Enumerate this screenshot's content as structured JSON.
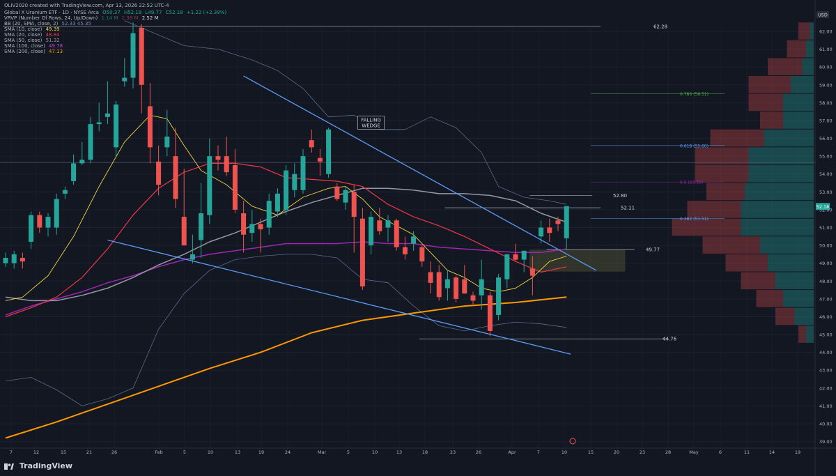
{
  "header": {
    "created_line": "OLIV2020 created with TradingView.com, Apr 13, 2026 22:52 UTC-4",
    "symbol_line": "Global X Uranium ETF · 1D · NYSE Arca",
    "ohlc": {
      "o": "O50.37",
      "h": "H52.18",
      "l": "L49.77",
      "c": "C52.18",
      "chg": "+1.22 (+2.39%)"
    },
    "vrvp_label": "VRVP (Number Of Rows, 24, Up/Down)",
    "vrvp_vals": [
      "1.14 M",
      "1.38 M",
      "2.52 M"
    ],
    "bb_label": "BB (20, SMA, close, 2)",
    "bb_vals": "52.33  45.35",
    "sma10_label": "SMA (10, close)",
    "sma10_val": "49.39",
    "sma20_label": "SMA (20, close)",
    "sma20_val": "48.84",
    "sma50_label": "SMA (50, close)",
    "sma50_val": "51.32",
    "sma100_label": "SMA (100, close)",
    "sma100_val": "49.78",
    "sma200_label": "SMA (200, close)",
    "sma200_val": "47.13"
  },
  "currency": "USD",
  "footer_brand": "TradingView",
  "colors": {
    "bg": "#131722",
    "up": "#26a69a",
    "down": "#ef5350",
    "sma10": "#f2d541",
    "sma20": "#f23645",
    "sma50": "#9598a1",
    "sma100": "#9c27b0",
    "sma200": "#ff9800",
    "bb": "#5b6b8a",
    "wedge": "#5b9cf6",
    "fib": "#4a78a8"
  },
  "chart_data": {
    "type": "candlestick",
    "ylim": [
      38.6,
      62.6
    ],
    "y_ticks": [
      "39.00",
      "40.00",
      "41.00",
      "42.00",
      "43.00",
      "44.00",
      "45.00",
      "46.00",
      "47.00",
      "48.00",
      "49.00",
      "50.00",
      "51.00",
      "52.00",
      "53.00",
      "54.00",
      "55.00",
      "56.00",
      "57.00",
      "58.00",
      "59.00",
      "60.00",
      "61.00",
      "62.00"
    ],
    "x_ticks": [
      "7",
      "12",
      "15",
      "21",
      "26",
      "Feb",
      "5",
      "10",
      "13",
      "19",
      "24",
      "Mar",
      "5",
      "10",
      "13",
      "18",
      "23",
      "26",
      "Apr",
      "7",
      "10",
      "15",
      "20",
      "23",
      "28",
      "May",
      "6",
      "11",
      "14",
      "19"
    ],
    "candles": [
      {
        "o": 49.0,
        "h": 49.6,
        "l": 48.8,
        "c": 49.3
      },
      {
        "o": 49.0,
        "h": 49.7,
        "l": 48.7,
        "c": 49.5
      },
      {
        "o": 49.3,
        "h": 49.6,
        "l": 48.7,
        "c": 49.1
      },
      {
        "o": 50.2,
        "h": 51.9,
        "l": 49.8,
        "c": 51.7
      },
      {
        "o": 51.7,
        "h": 51.9,
        "l": 50.7,
        "c": 51.0
      },
      {
        "o": 51.0,
        "h": 51.8,
        "l": 50.5,
        "c": 51.6
      },
      {
        "o": 51.0,
        "h": 52.9,
        "l": 50.6,
        "c": 52.6
      },
      {
        "o": 52.9,
        "h": 53.3,
        "l": 52.6,
        "c": 53.1
      },
      {
        "o": 53.6,
        "h": 55.1,
        "l": 53.4,
        "c": 54.6
      },
      {
        "o": 54.6,
        "h": 55.8,
        "l": 54.5,
        "c": 54.8
      },
      {
        "o": 54.8,
        "h": 57.2,
        "l": 54.6,
        "c": 56.8
      },
      {
        "o": 56.8,
        "h": 58.0,
        "l": 56.4,
        "c": 56.9
      },
      {
        "o": 57.2,
        "h": 59.2,
        "l": 56.8,
        "c": 57.4
      },
      {
        "o": 55.5,
        "h": 58.1,
        "l": 55.0,
        "c": 57.9
      },
      {
        "o": 59.2,
        "h": 60.5,
        "l": 58.9,
        "c": 59.4
      },
      {
        "o": 59.4,
        "h": 62.5,
        "l": 58.8,
        "c": 61.9
      },
      {
        "o": 62.2,
        "h": 62.4,
        "l": 57.4,
        "c": 59.0
      },
      {
        "o": 57.8,
        "h": 59.1,
        "l": 54.6,
        "c": 55.5
      },
      {
        "o": 54.7,
        "h": 55.6,
        "l": 52.8,
        "c": 53.4
      },
      {
        "o": 55.5,
        "h": 57.6,
        "l": 55.0,
        "c": 56.1
      },
      {
        "o": 55.0,
        "h": 56.6,
        "l": 52.1,
        "c": 52.6
      },
      {
        "o": 51.6,
        "h": 54.3,
        "l": 50.0,
        "c": 50.0
      },
      {
        "o": 49.2,
        "h": 50.6,
        "l": 49.0,
        "c": 49.5
      },
      {
        "o": 50.3,
        "h": 53.5,
        "l": 49.3,
        "c": 51.8
      },
      {
        "o": 51.7,
        "h": 56.0,
        "l": 51.2,
        "c": 55.0
      },
      {
        "o": 55.0,
        "h": 55.6,
        "l": 54.2,
        "c": 54.8
      },
      {
        "o": 55.0,
        "h": 56.1,
        "l": 53.9,
        "c": 54.1
      },
      {
        "o": 54.5,
        "h": 55.4,
        "l": 51.8,
        "c": 52.0
      },
      {
        "o": 51.8,
        "h": 52.5,
        "l": 49.6,
        "c": 50.6
      },
      {
        "o": 50.7,
        "h": 52.0,
        "l": 50.2,
        "c": 51.2
      },
      {
        "o": 51.2,
        "h": 51.5,
        "l": 49.6,
        "c": 50.9
      },
      {
        "o": 51.0,
        "h": 52.9,
        "l": 50.6,
        "c": 52.5
      },
      {
        "o": 51.9,
        "h": 53.2,
        "l": 51.6,
        "c": 52.9
      },
      {
        "o": 52.0,
        "h": 54.5,
        "l": 51.7,
        "c": 54.2
      },
      {
        "o": 53.1,
        "h": 54.6,
        "l": 52.7,
        "c": 54.0
      },
      {
        "o": 53.1,
        "h": 55.4,
        "l": 52.9,
        "c": 55.0
      },
      {
        "o": 55.9,
        "h": 56.5,
        "l": 55.2,
        "c": 55.5
      },
      {
        "o": 54.9,
        "h": 55.4,
        "l": 53.9,
        "c": 54.7
      },
      {
        "o": 54.0,
        "h": 56.6,
        "l": 53.8,
        "c": 56.5
      },
      {
        "o": 53.3,
        "h": 53.5,
        "l": 52.5,
        "c": 52.6
      },
      {
        "o": 52.4,
        "h": 53.3,
        "l": 52.0,
        "c": 53.1
      },
      {
        "o": 53.0,
        "h": 53.4,
        "l": 49.6,
        "c": 51.6
      },
      {
        "o": 51.5,
        "h": 52.1,
        "l": 47.5,
        "c": 47.7
      },
      {
        "o": 50.0,
        "h": 51.9,
        "l": 49.5,
        "c": 51.6
      },
      {
        "o": 51.4,
        "h": 52.1,
        "l": 50.6,
        "c": 50.8
      },
      {
        "o": 51.0,
        "h": 51.7,
        "l": 50.2,
        "c": 51.4
      },
      {
        "o": 51.4,
        "h": 51.5,
        "l": 49.7,
        "c": 49.9
      },
      {
        "o": 49.9,
        "h": 50.5,
        "l": 49.2,
        "c": 49.5
      },
      {
        "o": 50.1,
        "h": 50.8,
        "l": 49.7,
        "c": 50.5
      },
      {
        "o": 49.9,
        "h": 50.0,
        "l": 48.8,
        "c": 49.1
      },
      {
        "o": 48.5,
        "h": 49.1,
        "l": 47.3,
        "c": 47.9
      },
      {
        "o": 48.5,
        "h": 48.9,
        "l": 46.9,
        "c": 47.1
      },
      {
        "o": 47.6,
        "h": 48.6,
        "l": 46.9,
        "c": 48.1
      },
      {
        "o": 48.2,
        "h": 48.3,
        "l": 46.8,
        "c": 47.0
      },
      {
        "o": 48.1,
        "h": 48.9,
        "l": 47.3,
        "c": 47.3
      },
      {
        "o": 47.2,
        "h": 47.4,
        "l": 46.7,
        "c": 46.9
      },
      {
        "o": 47.2,
        "h": 49.2,
        "l": 46.4,
        "c": 48.1
      },
      {
        "o": 47.2,
        "h": 47.4,
        "l": 44.9,
        "c": 45.2
      },
      {
        "o": 46.1,
        "h": 48.4,
        "l": 45.8,
        "c": 48.2
      },
      {
        "o": 48.1,
        "h": 49.5,
        "l": 47.6,
        "c": 49.5
      },
      {
        "o": 49.5,
        "h": 50.1,
        "l": 49.1,
        "c": 49.2
      },
      {
        "o": 49.2,
        "h": 49.7,
        "l": 48.5,
        "c": 49.7
      },
      {
        "o": 48.7,
        "h": 49.4,
        "l": 47.2,
        "c": 48.3
      },
      {
        "o": 50.5,
        "h": 51.4,
        "l": 50.1,
        "c": 51.0
      },
      {
        "o": 51.0,
        "h": 51.5,
        "l": 50.2,
        "c": 50.7
      },
      {
        "o": 51.4,
        "h": 51.6,
        "l": 50.8,
        "c": 51.2
      },
      {
        "o": 50.4,
        "h": 52.2,
        "l": 49.8,
        "c": 52.2
      }
    ],
    "sma10": [
      [
        0,
        46.9
      ],
      [
        2,
        47.1
      ],
      [
        5,
        48.3
      ],
      [
        8,
        50.5
      ],
      [
        11,
        53.3
      ],
      [
        14,
        55.8
      ],
      [
        17,
        57.3
      ],
      [
        19,
        57.1
      ],
      [
        21,
        55.6
      ],
      [
        23,
        54.2
      ],
      [
        26,
        53.4
      ],
      [
        29,
        52.2
      ],
      [
        32,
        51.7
      ],
      [
        35,
        52.7
      ],
      [
        38,
        53.2
      ],
      [
        40,
        53.3
      ],
      [
        42,
        52.6
      ],
      [
        44,
        51.6
      ],
      [
        46,
        51.1
      ],
      [
        48,
        50.6
      ],
      [
        50,
        49.6
      ],
      [
        52,
        48.6
      ],
      [
        54,
        48.2
      ],
      [
        56,
        47.6
      ],
      [
        58,
        47.4
      ],
      [
        60,
        47.6
      ],
      [
        62,
        48.2
      ],
      [
        64,
        49.1
      ],
      [
        66,
        49.4
      ]
    ],
    "sma20": [
      [
        0,
        46.0
      ],
      [
        3,
        46.5
      ],
      [
        6,
        47.1
      ],
      [
        9,
        48.2
      ],
      [
        12,
        49.8
      ],
      [
        15,
        51.7
      ],
      [
        18,
        53.2
      ],
      [
        21,
        54.1
      ],
      [
        24,
        54.6
      ],
      [
        27,
        54.6
      ],
      [
        30,
        54.4
      ],
      [
        33,
        53.8
      ],
      [
        36,
        53.7
      ],
      [
        39,
        53.6
      ],
      [
        42,
        53.3
      ],
      [
        45,
        52.3
      ],
      [
        48,
        51.6
      ],
      [
        51,
        51.1
      ],
      [
        54,
        50.5
      ],
      [
        57,
        49.8
      ],
      [
        60,
        49.1
      ],
      [
        63,
        48.5
      ],
      [
        66,
        48.8
      ]
    ],
    "sma50": [
      [
        0,
        47.1
      ],
      [
        3,
        46.9
      ],
      [
        6,
        46.9
      ],
      [
        9,
        47.2
      ],
      [
        12,
        47.6
      ],
      [
        15,
        48.2
      ],
      [
        18,
        48.9
      ],
      [
        21,
        49.5
      ],
      [
        24,
        50.2
      ],
      [
        27,
        50.7
      ],
      [
        30,
        51.3
      ],
      [
        33,
        51.9
      ],
      [
        36,
        52.4
      ],
      [
        39,
        52.8
      ],
      [
        42,
        53.2
      ],
      [
        45,
        53.2
      ],
      [
        48,
        53.1
      ],
      [
        51,
        52.9
      ],
      [
        54,
        52.9
      ],
      [
        57,
        52.8
      ],
      [
        60,
        52.5
      ],
      [
        63,
        51.8
      ],
      [
        66,
        51.3
      ]
    ],
    "sma100": [
      [
        0,
        46.1
      ],
      [
        3,
        46.6
      ],
      [
        6,
        47.0
      ],
      [
        9,
        47.4
      ],
      [
        12,
        47.9
      ],
      [
        15,
        48.3
      ],
      [
        18,
        48.8
      ],
      [
        21,
        49.2
      ],
      [
        24,
        49.5
      ],
      [
        27,
        49.7
      ],
      [
        30,
        49.9
      ],
      [
        33,
        50.1
      ],
      [
        36,
        50.1
      ],
      [
        39,
        50.1
      ],
      [
        42,
        50.2
      ],
      [
        45,
        50.1
      ],
      [
        48,
        50.1
      ],
      [
        51,
        49.9
      ],
      [
        54,
        49.8
      ],
      [
        57,
        49.7
      ],
      [
        60,
        49.6
      ],
      [
        63,
        49.6
      ],
      [
        66,
        49.8
      ]
    ],
    "sma200": [
      [
        0,
        39.2
      ],
      [
        6,
        40.1
      ],
      [
        12,
        41.1
      ],
      [
        18,
        42.1
      ],
      [
        24,
        43.1
      ],
      [
        30,
        44.0
      ],
      [
        36,
        45.1
      ],
      [
        42,
        45.8
      ],
      [
        48,
        46.2
      ],
      [
        54,
        46.6
      ],
      [
        60,
        46.8
      ],
      [
        66,
        47.1
      ]
    ],
    "bb_upper": [
      [
        14,
        62.6
      ],
      [
        17,
        62.0
      ],
      [
        21,
        61.2
      ],
      [
        25,
        61.0
      ],
      [
        29,
        60.4
      ],
      [
        32,
        59.8
      ],
      [
        35,
        58.8
      ],
      [
        38,
        57.2
      ],
      [
        41,
        57.3
      ],
      [
        44,
        56.5
      ],
      [
        47,
        56.5
      ],
      [
        50,
        57.2
      ],
      [
        53,
        56.6
      ],
      [
        56,
        55.2
      ],
      [
        58,
        53.3
      ],
      [
        61,
        52.7
      ],
      [
        64,
        52.5
      ],
      [
        66,
        52.3
      ]
    ],
    "bb_lower": [
      [
        0,
        42.4
      ],
      [
        3,
        42.6
      ],
      [
        6,
        41.9
      ],
      [
        9,
        41.0
      ],
      [
        12,
        41.4
      ],
      [
        15,
        42.0
      ],
      [
        18,
        45.3
      ],
      [
        21,
        47.3
      ],
      [
        24,
        48.6
      ],
      [
        27,
        49.2
      ],
      [
        30,
        49.4
      ],
      [
        33,
        49.5
      ],
      [
        36,
        49.5
      ],
      [
        39,
        49.3
      ],
      [
        42,
        48.1
      ],
      [
        45,
        47.9
      ],
      [
        48,
        46.6
      ],
      [
        51,
        45.5
      ],
      [
        54,
        45.2
      ],
      [
        57,
        45.5
      ],
      [
        60,
        45.7
      ],
      [
        63,
        45.6
      ],
      [
        66,
        45.4
      ]
    ],
    "annotations": [
      {
        "label": "FALLING WEDGE",
        "i": 43,
        "y": 56.9
      },
      {
        "label": "62.28",
        "y": 62.28,
        "x0": 0,
        "x1": 70
      },
      {
        "label": "52.80",
        "y": 52.8,
        "x0": 62,
        "x1": 69
      },
      {
        "label": "52.11",
        "y": 52.11,
        "x0": 52,
        "x1": 70
      },
      {
        "label": "49.77",
        "y": 49.77,
        "x0": 64,
        "x1": 74
      },
      {
        "label": "44.76",
        "y": 44.76,
        "x0": 49,
        "x1": 78
      }
    ],
    "wedge_lines": [
      [
        [
          28,
          59.5
        ],
        [
          69.5,
          48.6
        ]
      ],
      [
        [
          12,
          50.3
        ],
        [
          66.5,
          43.9
        ]
      ]
    ],
    "fib_levels": [
      {
        "label": "0.786 (58.51)",
        "y": 58.51,
        "color": "#4caf50"
      },
      {
        "label": "0.618 (55.60)",
        "y": 55.6,
        "color": "#5b9cf6"
      },
      {
        "label": "0.5 (53.55)",
        "y": 53.55,
        "color": "#9c27b0"
      },
      {
        "label": "0.382 (51.51)",
        "y": 51.51,
        "color": "#5b9cf6"
      }
    ],
    "volume_profile": [
      {
        "y": 62.0,
        "up": 0.1,
        "down": 0.3
      },
      {
        "y": 61.0,
        "up": 0.2,
        "down": 0.5
      },
      {
        "y": 60.0,
        "up": 0.3,
        "down": 0.9
      },
      {
        "y": 59.0,
        "up": 0.6,
        "down": 1.1
      },
      {
        "y": 58.0,
        "up": 0.8,
        "down": 0.9
      },
      {
        "y": 57.0,
        "up": 0.8,
        "down": 0.6
      },
      {
        "y": 56.0,
        "up": 1.3,
        "down": 1.4
      },
      {
        "y": 55.0,
        "up": 1.7,
        "down": 1.4
      },
      {
        "y": 54.0,
        "up": 1.7,
        "down": 1.4
      },
      {
        "y": 53.0,
        "up": 1.8,
        "down": 1.0
      },
      {
        "y": 52.0,
        "up": 1.9,
        "down": 1.4
      },
      {
        "y": 51.0,
        "up": 1.9,
        "down": 1.8
      },
      {
        "y": 50.0,
        "up": 1.4,
        "down": 1.5
      },
      {
        "y": 49.0,
        "up": 1.2,
        "down": 1.1
      },
      {
        "y": 48.0,
        "up": 1.0,
        "down": 0.9
      },
      {
        "y": 47.0,
        "up": 0.8,
        "down": 0.7
      },
      {
        "y": 46.0,
        "up": 0.5,
        "down": 0.5
      },
      {
        "y": 45.0,
        "up": 0.2,
        "down": 0.2
      }
    ],
    "last_price": "52.18"
  }
}
